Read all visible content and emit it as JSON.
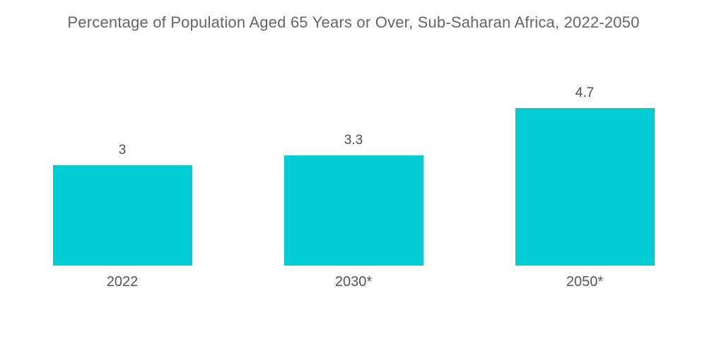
{
  "chart_data": {
    "type": "bar",
    "title": "Percentage of Population Aged 65 Years or Over, Sub-Saharan Africa, 2022-2050",
    "categories": [
      "2022",
      "2030*",
      "2050*"
    ],
    "values": [
      3,
      3.3,
      4.7
    ],
    "value_labels": [
      "3",
      "3.3",
      "4.7"
    ],
    "xlabel": "",
    "ylabel": "",
    "ylim": [
      0,
      5
    ],
    "grid": false,
    "legend": false,
    "bar_color": "#00CBD2",
    "title_color": "#666666",
    "label_color": "#4f4f4f"
  }
}
